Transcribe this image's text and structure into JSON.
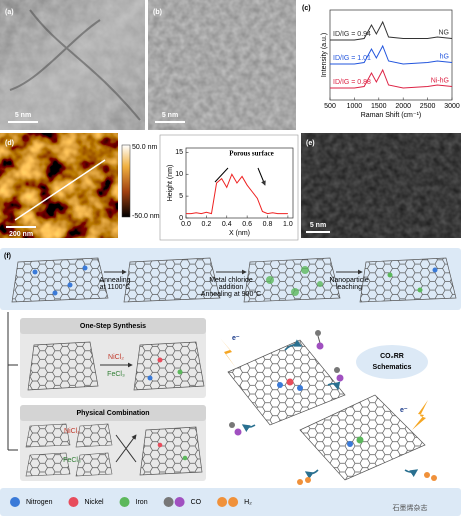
{
  "panels": {
    "a": {
      "label": "(a)",
      "scale": "5 nm"
    },
    "b": {
      "label": "(b)",
      "scale": "5 nm"
    },
    "c": {
      "label": "(c)"
    },
    "d": {
      "label": "(d)",
      "scale": "200 nm",
      "colorbar": [
        "50.0 nm",
        "-50.0 nm"
      ]
    },
    "e": {
      "label": "(e)",
      "scale": "5 nm"
    },
    "f": {
      "label": "(f)"
    }
  },
  "chart_data": [
    {
      "type": "line",
      "x_label": "Raman Shift (cm⁻¹)",
      "y_label": "Intensity (a.u.)",
      "x": [
        500,
        1000,
        1200,
        1350,
        1450,
        1580,
        1700,
        2000,
        2500,
        2700,
        3000
      ],
      "series": [
        {
          "name": "NG",
          "color": "#333333",
          "values": [
            2.0,
            2.0,
            2.05,
            2.5,
            2.2,
            2.6,
            2.1,
            2.05,
            2.05,
            2.1,
            2.05
          ]
        },
        {
          "name": "hG",
          "color": "#2255dd",
          "values": [
            1.2,
            1.2,
            1.25,
            1.7,
            1.4,
            1.8,
            1.3,
            1.2,
            1.25,
            1.3,
            1.25
          ]
        },
        {
          "name": "Ni-hG",
          "color": "#dd2244",
          "values": [
            0.4,
            0.4,
            0.45,
            0.9,
            0.6,
            1.0,
            0.5,
            0.4,
            0.45,
            0.5,
            0.45
          ]
        }
      ],
      "annotations": [
        "ID/IG = 0.94",
        "ID/IG = 1.01",
        "ID/IG = 0.88"
      ],
      "xlim": [
        500,
        3000
      ],
      "xticks": [
        500,
        1000,
        1500,
        2000,
        2500,
        3000
      ],
      "ylim": [
        0,
        3
      ]
    },
    {
      "type": "line",
      "x_label": "X (nm)",
      "y_label": "Height (nm)",
      "annotation": "Porous surface",
      "x": [
        0,
        0.05,
        0.1,
        0.15,
        0.2,
        0.25,
        0.3,
        0.35,
        0.4,
        0.45,
        0.5,
        0.55,
        0.6,
        0.65,
        0.7,
        0.75,
        0.8,
        0.85,
        0.9,
        0.95,
        1.0
      ],
      "series": [
        {
          "color": "#ee2222",
          "values": [
            1,
            1,
            1.2,
            1,
            1.3,
            1,
            8,
            9,
            7,
            10,
            8,
            9.5,
            7.5,
            6,
            4.5,
            1.5,
            1,
            1.2,
            1,
            1,
            1
          ]
        }
      ],
      "xlim": [
        0,
        1.05
      ],
      "xticks": [
        {
          "value": 0,
          "label": "0.0"
        },
        0.2,
        0.4,
        0.6,
        0.8,
        {
          "value": 1,
          "label": "1.0"
        }
      ],
      "ylim": [
        0,
        16
      ],
      "yticks": [
        0,
        5,
        10,
        15
      ]
    }
  ],
  "synthesis": {
    "steps": [
      [
        "Annealing",
        "at 1100°C"
      ],
      [
        "Metal chloride",
        "addition",
        "Annealing at 900°C"
      ],
      [
        "Nanoparticle",
        "leaching"
      ]
    ],
    "one_step": {
      "title": "One-Step Synthesis",
      "reagents": [
        "NiCl₂",
        "FeCl₃"
      ]
    },
    "physical": {
      "title": "Physical Combination",
      "reagents": [
        "NiCl₂",
        "FeCl₃"
      ]
    },
    "schematic": {
      "title": "CO₂RR",
      "subtitle": "Schematics",
      "electron": "e⁻"
    }
  },
  "legend": [
    "Nitrogen",
    "Nickel",
    "Iron",
    "CO",
    "H₂"
  ],
  "watermark": "石墨烯杂志"
}
